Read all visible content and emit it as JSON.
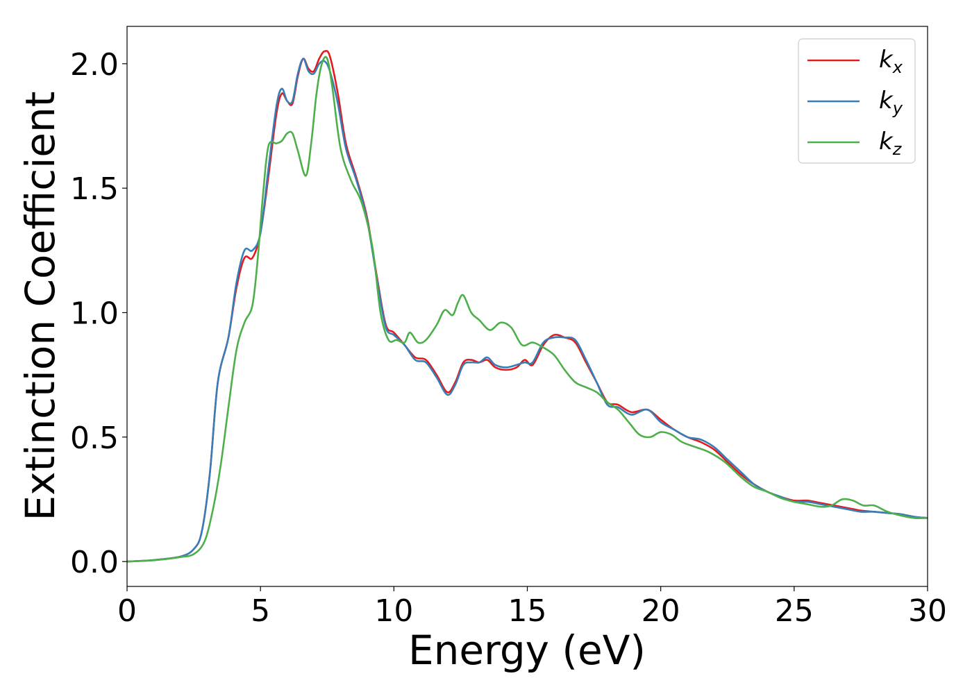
{
  "chart_data": {
    "type": "line",
    "title": "",
    "xlabel": "Energy (eV)",
    "ylabel": "Extinction Coefficient",
    "xlim": [
      0,
      30
    ],
    "ylim": [
      -0.1,
      2.15
    ],
    "xticks": [
      0,
      5,
      10,
      15,
      20,
      25,
      30
    ],
    "xtick_labels": [
      "0",
      "5",
      "10",
      "15",
      "20",
      "25",
      "30"
    ],
    "yticks": [
      0.0,
      0.5,
      1.0,
      1.5,
      2.0
    ],
    "ytick_labels": [
      "0.0",
      "0.5",
      "1.0",
      "1.5",
      "2.0"
    ],
    "grid": false,
    "legend_position": "top-right",
    "series": [
      {
        "name": "k",
        "subscript": "x",
        "color": "#e41a1c",
        "points": [
          [
            0,
            0
          ],
          [
            1,
            0.006
          ],
          [
            2,
            0.02
          ],
          [
            2.5,
            0.05
          ],
          [
            2.8,
            0.12
          ],
          [
            3.1,
            0.35
          ],
          [
            3.4,
            0.72
          ],
          [
            3.8,
            0.9
          ],
          [
            4.1,
            1.1
          ],
          [
            4.4,
            1.22
          ],
          [
            4.7,
            1.22
          ],
          [
            5.0,
            1.32
          ],
          [
            5.3,
            1.55
          ],
          [
            5.6,
            1.8
          ],
          [
            5.8,
            1.88
          ],
          [
            6.0,
            1.85
          ],
          [
            6.2,
            1.84
          ],
          [
            6.4,
            1.95
          ],
          [
            6.6,
            2.02
          ],
          [
            6.8,
            1.98
          ],
          [
            7.0,
            1.97
          ],
          [
            7.2,
            2.02
          ],
          [
            7.4,
            2.05
          ],
          [
            7.6,
            2.03
          ],
          [
            7.9,
            1.88
          ],
          [
            8.2,
            1.68
          ],
          [
            8.6,
            1.54
          ],
          [
            9.0,
            1.38
          ],
          [
            9.4,
            1.12
          ],
          [
            9.7,
            0.95
          ],
          [
            10.0,
            0.92
          ],
          [
            10.4,
            0.87
          ],
          [
            10.8,
            0.82
          ],
          [
            11.2,
            0.81
          ],
          [
            11.6,
            0.75
          ],
          [
            12.0,
            0.68
          ],
          [
            12.3,
            0.72
          ],
          [
            12.6,
            0.8
          ],
          [
            12.9,
            0.81
          ],
          [
            13.2,
            0.8
          ],
          [
            13.5,
            0.81
          ],
          [
            13.8,
            0.78
          ],
          [
            14.2,
            0.77
          ],
          [
            14.6,
            0.78
          ],
          [
            14.9,
            0.81
          ],
          [
            15.2,
            0.79
          ],
          [
            15.6,
            0.87
          ],
          [
            16.0,
            0.91
          ],
          [
            16.4,
            0.9
          ],
          [
            16.8,
            0.88
          ],
          [
            17.2,
            0.8
          ],
          [
            17.6,
            0.72
          ],
          [
            18.0,
            0.64
          ],
          [
            18.4,
            0.63
          ],
          [
            18.9,
            0.6
          ],
          [
            19.5,
            0.61
          ],
          [
            20.0,
            0.57
          ],
          [
            20.5,
            0.53
          ],
          [
            21.0,
            0.5
          ],
          [
            21.5,
            0.48
          ],
          [
            22.0,
            0.45
          ],
          [
            22.5,
            0.4
          ],
          [
            23.0,
            0.35
          ],
          [
            23.5,
            0.31
          ],
          [
            24.0,
            0.28
          ],
          [
            24.5,
            0.26
          ],
          [
            25.0,
            0.245
          ],
          [
            25.5,
            0.245
          ],
          [
            26.0,
            0.235
          ],
          [
            26.5,
            0.225
          ],
          [
            27.0,
            0.215
          ],
          [
            27.5,
            0.205
          ],
          [
            28.0,
            0.2
          ],
          [
            28.5,
            0.195
          ],
          [
            29.0,
            0.19
          ],
          [
            29.5,
            0.18
          ],
          [
            30,
            0.175
          ]
        ]
      },
      {
        "name": "k",
        "subscript": "y",
        "color": "#377eb8",
        "points": [
          [
            0,
            0
          ],
          [
            1,
            0.006
          ],
          [
            2,
            0.02
          ],
          [
            2.5,
            0.05
          ],
          [
            2.8,
            0.12
          ],
          [
            3.1,
            0.35
          ],
          [
            3.4,
            0.72
          ],
          [
            3.8,
            0.9
          ],
          [
            4.1,
            1.12
          ],
          [
            4.4,
            1.25
          ],
          [
            4.7,
            1.25
          ],
          [
            5.0,
            1.32
          ],
          [
            5.3,
            1.58
          ],
          [
            5.6,
            1.83
          ],
          [
            5.8,
            1.9
          ],
          [
            6.0,
            1.85
          ],
          [
            6.2,
            1.85
          ],
          [
            6.4,
            1.96
          ],
          [
            6.6,
            2.02
          ],
          [
            6.8,
            1.97
          ],
          [
            7.0,
            1.96
          ],
          [
            7.2,
            2.0
          ],
          [
            7.4,
            2.01
          ],
          [
            7.6,
            1.97
          ],
          [
            7.9,
            1.84
          ],
          [
            8.2,
            1.66
          ],
          [
            8.6,
            1.53
          ],
          [
            9.0,
            1.37
          ],
          [
            9.4,
            1.11
          ],
          [
            9.7,
            0.94
          ],
          [
            10.0,
            0.91
          ],
          [
            10.4,
            0.87
          ],
          [
            10.8,
            0.81
          ],
          [
            11.2,
            0.8
          ],
          [
            11.6,
            0.74
          ],
          [
            12.0,
            0.67
          ],
          [
            12.3,
            0.71
          ],
          [
            12.6,
            0.79
          ],
          [
            12.9,
            0.8
          ],
          [
            13.2,
            0.8
          ],
          [
            13.5,
            0.82
          ],
          [
            13.8,
            0.79
          ],
          [
            14.2,
            0.78
          ],
          [
            14.6,
            0.79
          ],
          [
            14.9,
            0.8
          ],
          [
            15.2,
            0.8
          ],
          [
            15.6,
            0.88
          ],
          [
            16.0,
            0.9
          ],
          [
            16.4,
            0.9
          ],
          [
            16.8,
            0.89
          ],
          [
            17.2,
            0.81
          ],
          [
            17.6,
            0.72
          ],
          [
            18.0,
            0.63
          ],
          [
            18.4,
            0.62
          ],
          [
            18.9,
            0.59
          ],
          [
            19.5,
            0.61
          ],
          [
            20.0,
            0.56
          ],
          [
            20.5,
            0.53
          ],
          [
            21.0,
            0.5
          ],
          [
            21.5,
            0.49
          ],
          [
            22.0,
            0.46
          ],
          [
            22.5,
            0.41
          ],
          [
            23.0,
            0.36
          ],
          [
            23.5,
            0.31
          ],
          [
            24.0,
            0.28
          ],
          [
            24.5,
            0.26
          ],
          [
            25.0,
            0.24
          ],
          [
            25.5,
            0.24
          ],
          [
            26.0,
            0.23
          ],
          [
            26.5,
            0.22
          ],
          [
            27.0,
            0.21
          ],
          [
            27.5,
            0.2
          ],
          [
            28.0,
            0.2
          ],
          [
            28.5,
            0.195
          ],
          [
            29.0,
            0.19
          ],
          [
            29.5,
            0.18
          ],
          [
            30,
            0.175
          ]
        ]
      },
      {
        "name": "k",
        "subscript": "z",
        "color": "#4daf4a",
        "points": [
          [
            0,
            0
          ],
          [
            1,
            0.005
          ],
          [
            2,
            0.018
          ],
          [
            2.5,
            0.03
          ],
          [
            2.9,
            0.08
          ],
          [
            3.2,
            0.2
          ],
          [
            3.5,
            0.38
          ],
          [
            3.8,
            0.62
          ],
          [
            4.1,
            0.85
          ],
          [
            4.4,
            0.96
          ],
          [
            4.7,
            1.03
          ],
          [
            4.9,
            1.22
          ],
          [
            5.1,
            1.48
          ],
          [
            5.3,
            1.67
          ],
          [
            5.6,
            1.68
          ],
          [
            5.8,
            1.69
          ],
          [
            6.0,
            1.72
          ],
          [
            6.2,
            1.72
          ],
          [
            6.4,
            1.65
          ],
          [
            6.7,
            1.55
          ],
          [
            6.9,
            1.68
          ],
          [
            7.1,
            1.88
          ],
          [
            7.3,
            2.0
          ],
          [
            7.5,
            2.02
          ],
          [
            7.7,
            1.9
          ],
          [
            8.0,
            1.66
          ],
          [
            8.4,
            1.53
          ],
          [
            8.8,
            1.44
          ],
          [
            9.2,
            1.26
          ],
          [
            9.5,
            1.0
          ],
          [
            9.8,
            0.89
          ],
          [
            10.1,
            0.89
          ],
          [
            10.4,
            0.88
          ],
          [
            10.6,
            0.92
          ],
          [
            10.9,
            0.88
          ],
          [
            11.2,
            0.89
          ],
          [
            11.6,
            0.95
          ],
          [
            11.9,
            1.01
          ],
          [
            12.2,
            0.99
          ],
          [
            12.4,
            1.04
          ],
          [
            12.6,
            1.07
          ],
          [
            12.9,
            1.0
          ],
          [
            13.2,
            0.97
          ],
          [
            13.6,
            0.93
          ],
          [
            14.0,
            0.96
          ],
          [
            14.4,
            0.94
          ],
          [
            14.8,
            0.87
          ],
          [
            15.2,
            0.88
          ],
          [
            15.6,
            0.86
          ],
          [
            16.0,
            0.83
          ],
          [
            16.4,
            0.77
          ],
          [
            16.8,
            0.72
          ],
          [
            17.2,
            0.7
          ],
          [
            17.6,
            0.68
          ],
          [
            18.0,
            0.64
          ],
          [
            18.4,
            0.61
          ],
          [
            18.8,
            0.56
          ],
          [
            19.2,
            0.51
          ],
          [
            19.6,
            0.5
          ],
          [
            20.0,
            0.52
          ],
          [
            20.4,
            0.51
          ],
          [
            20.8,
            0.48
          ],
          [
            21.3,
            0.46
          ],
          [
            21.8,
            0.44
          ],
          [
            22.4,
            0.4
          ],
          [
            23.0,
            0.34
          ],
          [
            23.5,
            0.3
          ],
          [
            24.0,
            0.28
          ],
          [
            24.5,
            0.255
          ],
          [
            25.0,
            0.24
          ],
          [
            25.5,
            0.23
          ],
          [
            26.0,
            0.22
          ],
          [
            26.4,
            0.225
          ],
          [
            26.8,
            0.25
          ],
          [
            27.2,
            0.245
          ],
          [
            27.6,
            0.225
          ],
          [
            28.0,
            0.225
          ],
          [
            28.5,
            0.2
          ],
          [
            29.0,
            0.185
          ],
          [
            29.5,
            0.175
          ],
          [
            30,
            0.175
          ]
        ]
      }
    ]
  }
}
